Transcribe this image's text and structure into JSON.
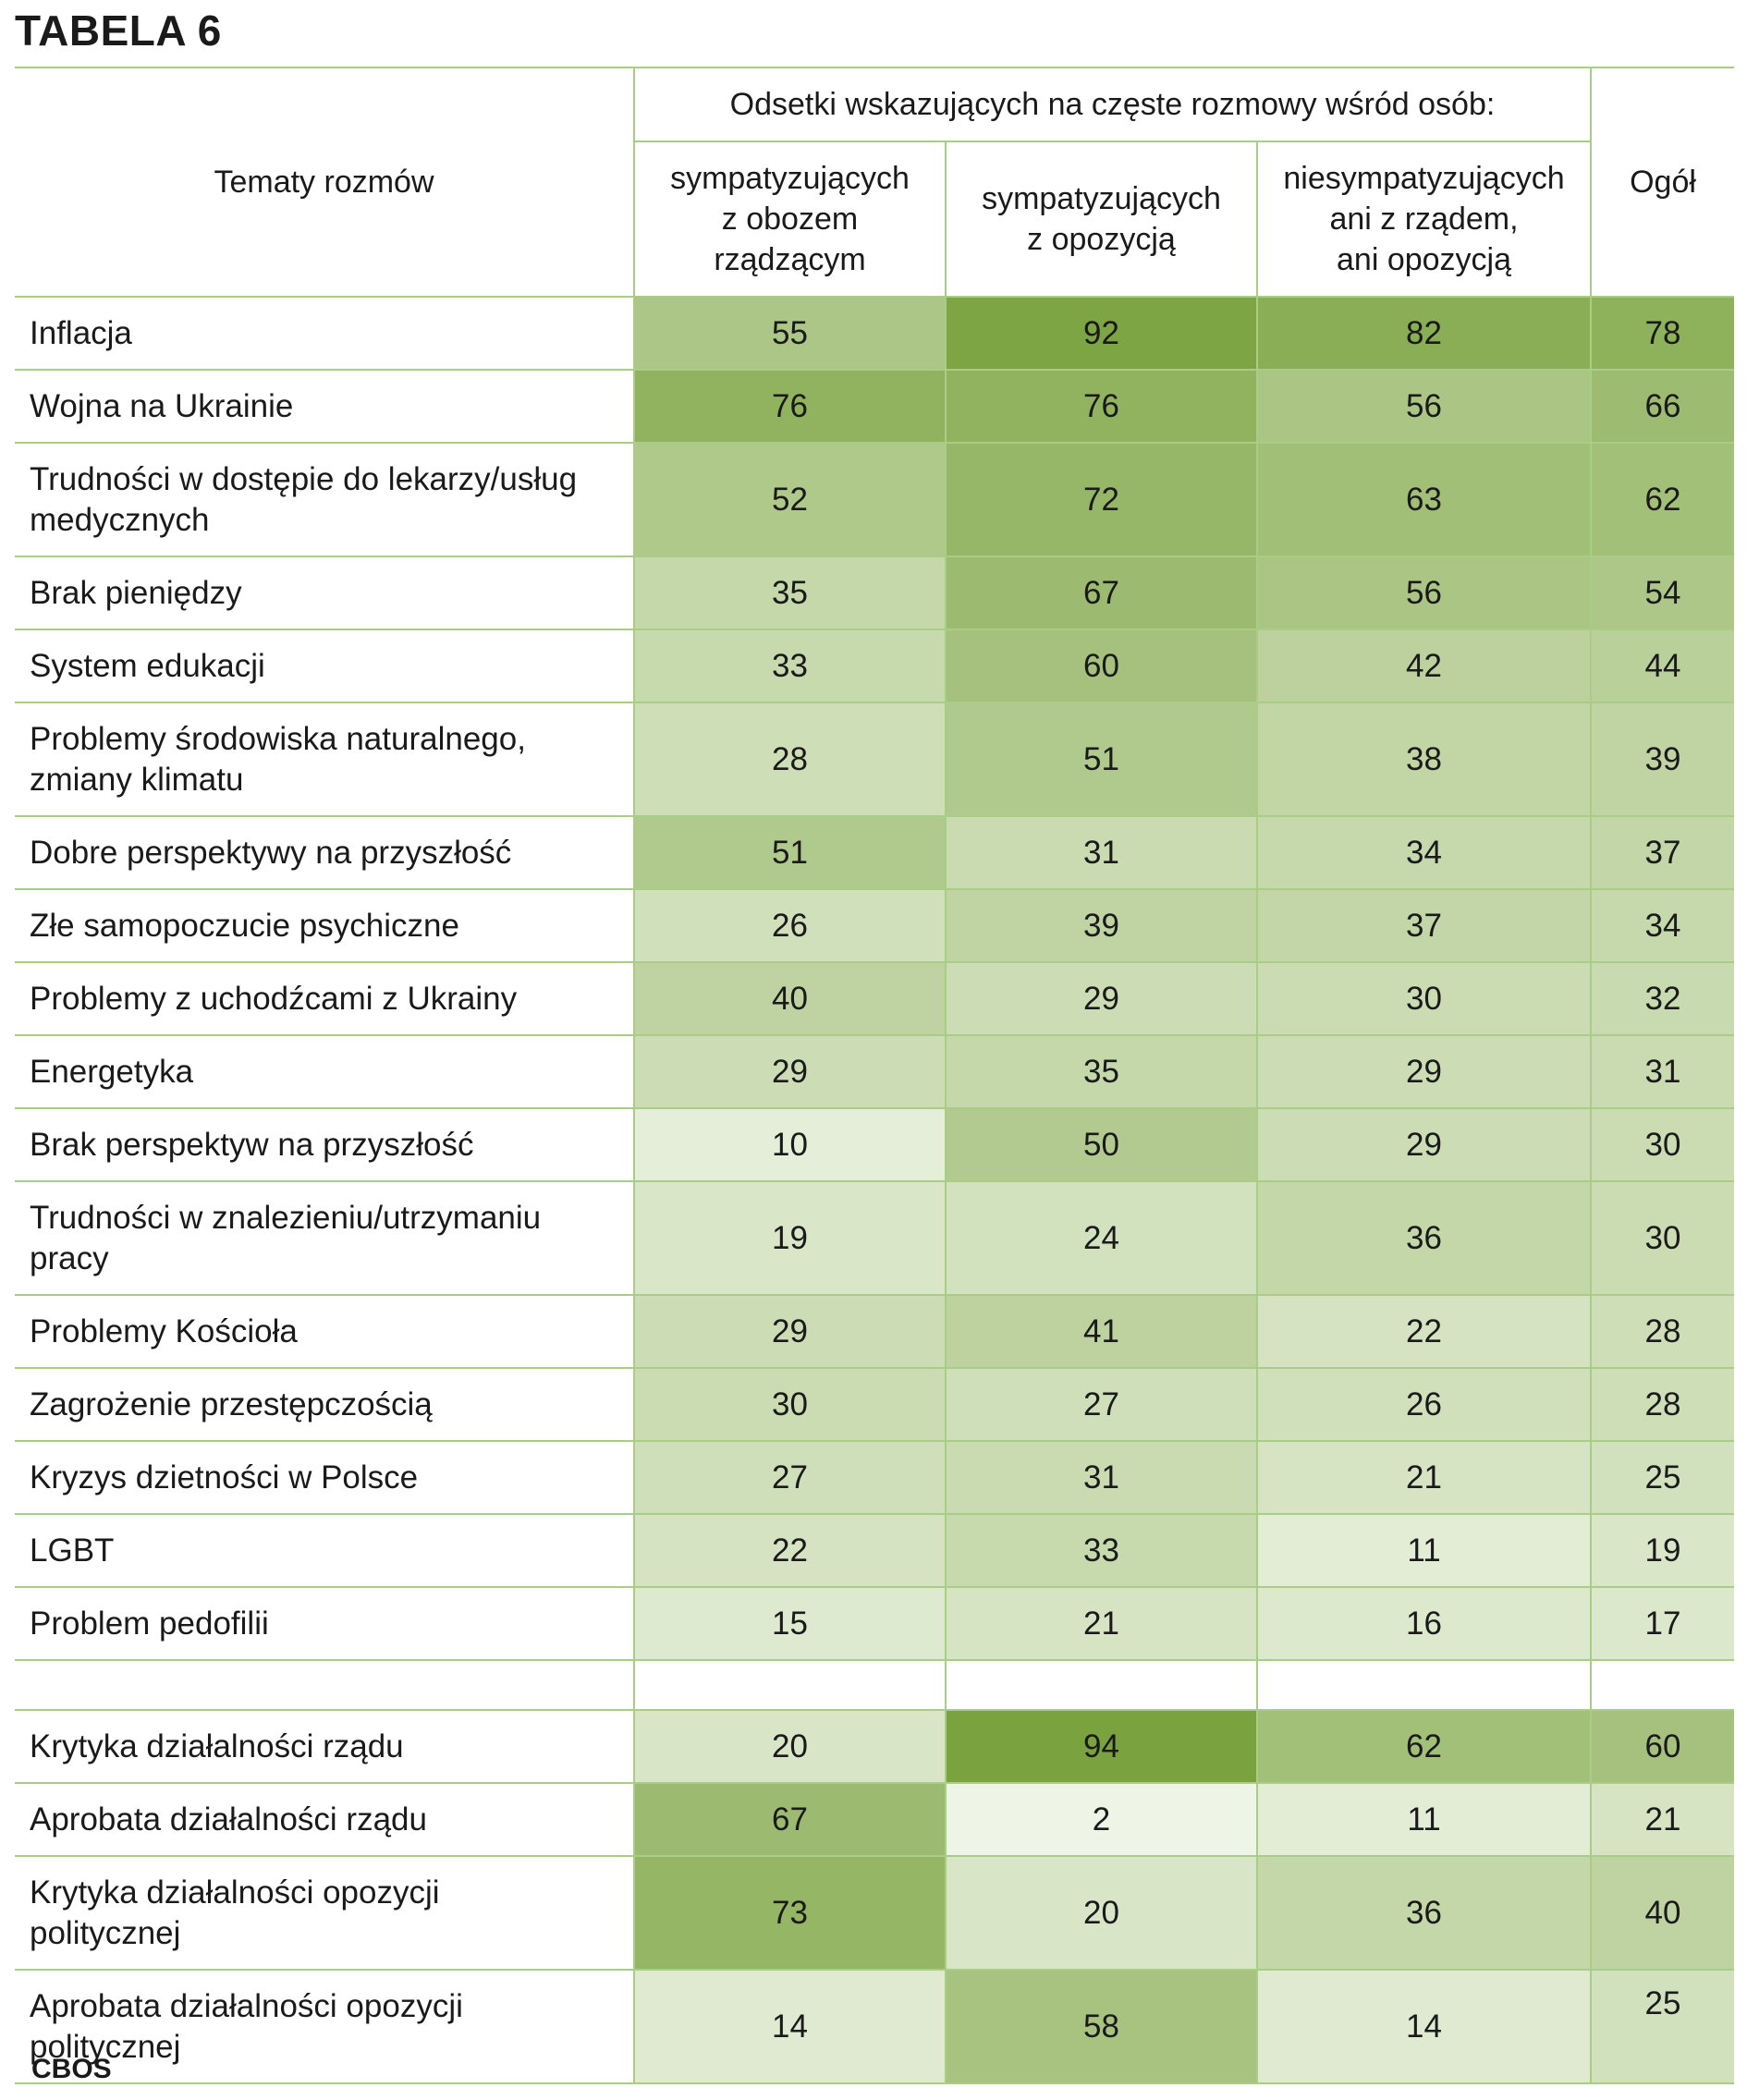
{
  "title": "TABELA 6",
  "source": "CBOS",
  "header": {
    "topics": "Tematy rozmów",
    "group_header": "Odsetki wskazujących na częste rozmowy wśród osób:",
    "columns": [
      [
        "sympatyzujących",
        "z obozem",
        "rządzącym"
      ],
      [
        "sympatyzujących",
        "z opozycją"
      ],
      [
        "niesympatyzujących",
        "ani z rządem,",
        "ani opozycją"
      ]
    ],
    "total": "Ogół"
  },
  "colors": {
    "border": "#a9cd85",
    "scale_low": "#f1f7ea",
    "scale_high": "#7aa33f"
  },
  "chart_data": {
    "type": "table",
    "title": "TABELA 6",
    "columns": [
      "sympatyzujących z obozem rządzącym",
      "sympatyzujących z opozycją",
      "niesympatyzujących ani z rządem, ani opozycją",
      "Ogół"
    ],
    "rows": [
      {
        "label": [
          "Inflacja"
        ],
        "values": [
          55,
          92,
          82,
          78
        ]
      },
      {
        "label": [
          "Wojna na Ukrainie"
        ],
        "values": [
          76,
          76,
          56,
          66
        ]
      },
      {
        "label": [
          "Trudności w dostępie do lekarzy/usług",
          "medycznych"
        ],
        "values": [
          52,
          72,
          63,
          62
        ]
      },
      {
        "label": [
          "Brak pieniędzy"
        ],
        "values": [
          35,
          67,
          56,
          54
        ]
      },
      {
        "label": [
          "System edukacji"
        ],
        "values": [
          33,
          60,
          42,
          44
        ]
      },
      {
        "label": [
          "Problemy środowiska naturalnego,",
          "zmiany klimatu"
        ],
        "values": [
          28,
          51,
          38,
          39
        ]
      },
      {
        "label": [
          "Dobre perspektywy na przyszłość"
        ],
        "values": [
          51,
          31,
          34,
          37
        ]
      },
      {
        "label": [
          "Złe samopoczucie psychiczne"
        ],
        "values": [
          26,
          39,
          37,
          34
        ]
      },
      {
        "label": [
          "Problemy z uchodźcami z Ukrainy"
        ],
        "values": [
          40,
          29,
          30,
          32
        ]
      },
      {
        "label": [
          "Energetyka"
        ],
        "values": [
          29,
          35,
          29,
          31
        ]
      },
      {
        "label": [
          "Brak perspektyw na przyszłość"
        ],
        "values": [
          10,
          50,
          29,
          30
        ]
      },
      {
        "label": [
          "Trudności w znalezieniu/utrzymaniu",
          "pracy"
        ],
        "values": [
          19,
          24,
          36,
          30
        ]
      },
      {
        "label": [
          "Problemy Kościoła"
        ],
        "values": [
          29,
          41,
          22,
          28
        ]
      },
      {
        "label": [
          "Zagrożenie przestępczością"
        ],
        "values": [
          30,
          27,
          26,
          28
        ]
      },
      {
        "label": [
          "Kryzys dzietności w Polsce"
        ],
        "values": [
          27,
          31,
          21,
          25
        ]
      },
      {
        "label": [
          "LGBT"
        ],
        "values": [
          22,
          33,
          11,
          19
        ]
      },
      {
        "label": [
          "Problem pedofilii"
        ],
        "values": [
          15,
          21,
          16,
          17
        ]
      }
    ],
    "rows2": [
      {
        "label": [
          "Krytyka działalności rządu"
        ],
        "values": [
          20,
          94,
          62,
          60
        ]
      },
      {
        "label": [
          "Aprobata działalności rządu"
        ],
        "values": [
          67,
          2,
          11,
          21
        ]
      },
      {
        "label": [
          "Krytyka działalności opozycji",
          "politycznej"
        ],
        "values": [
          73,
          20,
          36,
          40
        ]
      },
      {
        "label": [
          "Aprobata działalności opozycji",
          "politycznej"
        ],
        "values": [
          14,
          58,
          14,
          25
        ]
      }
    ]
  }
}
